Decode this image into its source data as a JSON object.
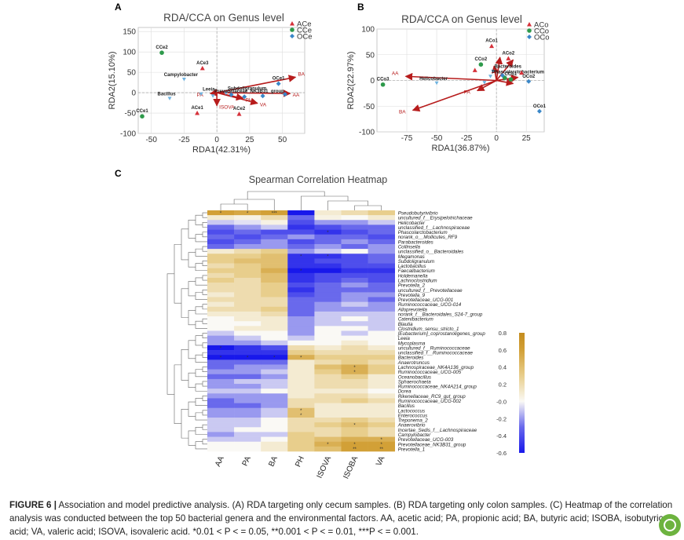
{
  "caption": {
    "label": "FIGURE 6 |",
    "text": "Association and model predictive analysis. (A) RDA targeting only cecum samples. (B) RDA targeting only colon samples. (C) Heatmap of the correlation analysis was conducted between the top 50 bacterial genera and the environmental factors. AA, acetic acid; PA, propionic acid; BA, butyric acid; ISOBA, isobutyric acid; VA, valeric acid; ISOVA, isovaleric acid. *0.01 < P < = 0.05, **0.001 < P < = 0.01, ***P < = 0.001."
  },
  "colors": {
    "AC": "#d6313a",
    "CC": "#2e9a4b",
    "OC": "#3a87c8",
    "arrow": "#b71c1c",
    "grid": "#dddddd"
  },
  "chart_data": [
    {
      "panel": "A",
      "type": "scatter",
      "title": "RDA/CCA on Genus level",
      "xlabel": "RDA1(42.31%)",
      "ylabel": "RDA2(15.10%)",
      "xlim": [
        -60,
        67
      ],
      "ylim": [
        -100,
        160
      ],
      "xticks": [
        -50,
        -25,
        0,
        25,
        50
      ],
      "yticks": [
        -100,
        -50,
        0,
        50,
        100,
        150
      ],
      "legend": {
        "position": "top-right",
        "entries": [
          "ACe",
          "CCe",
          "OCe"
        ]
      },
      "points": [
        {
          "label": "CCe2",
          "group": "CC",
          "x": -42,
          "y": 98
        },
        {
          "label": "CCe1",
          "group": "CC",
          "x": -57,
          "y": -58
        },
        {
          "label": "ACe3",
          "group": "AC",
          "x": -11,
          "y": 60
        },
        {
          "label": "ACe1",
          "group": "AC",
          "x": -15,
          "y": -50
        },
        {
          "label": "ACe2",
          "group": "AC",
          "x": 17,
          "y": -52
        },
        {
          "label": "OCe1",
          "group": "OC",
          "x": 47,
          "y": 22
        },
        {
          "label": "",
          "group": "OC",
          "x": 11,
          "y": -5
        },
        {
          "label": "",
          "group": "OC",
          "x": 21,
          "y": -10
        },
        {
          "label": "",
          "group": "OC",
          "x": 35,
          "y": -8
        },
        {
          "label": "",
          "group": "OC",
          "x": 52,
          "y": -4
        }
      ],
      "species": [
        {
          "label": "Campylobacter",
          "x": -25,
          "y": 33
        },
        {
          "label": "Bacillus",
          "x": -36,
          "y": -14
        },
        {
          "label": "Leeia",
          "x": -12,
          "y": -3
        },
        {
          "label": "Subdoligranulum",
          "x": 7,
          "y": -1
        },
        {
          "label": "Prevotellaceae_NK3B31_group",
          "x": -3,
          "y": -8
        }
      ],
      "vectors": [
        {
          "label": "BA",
          "x": 60,
          "y": 38
        },
        {
          "label": "AA",
          "x": 56,
          "y": -2
        },
        {
          "label": "VA",
          "x": 31,
          "y": -26
        },
        {
          "label": "ISOVA",
          "x": 0,
          "y": -32
        },
        {
          "label": "PA",
          "x": -5,
          "y": -2
        },
        {
          "label": "PH",
          "x": 20,
          "y": -14
        }
      ]
    },
    {
      "panel": "B",
      "type": "scatter",
      "title": "RDA/CCA on Genus level",
      "xlabel": "RDA1(36.87%)",
      "ylabel": "RDA2(22.97%)",
      "xlim": [
        -100,
        40
      ],
      "ylim": [
        -100,
        100
      ],
      "xticks": [
        -75,
        -50,
        -25,
        0,
        25
      ],
      "yticks": [
        -100,
        -50,
        0,
        50,
        100
      ],
      "legend": {
        "position": "top-right",
        "entries": [
          "ACo",
          "CCo",
          "OCo"
        ]
      },
      "points": [
        {
          "label": "ACo1",
          "group": "AC",
          "x": -4,
          "y": 67
        },
        {
          "label": "ACo2",
          "group": "AC",
          "x": 10,
          "y": 43
        },
        {
          "label": "",
          "group": "AC",
          "x": 21,
          "y": 15
        },
        {
          "label": "",
          "group": "AC",
          "x": -18,
          "y": 20
        },
        {
          "label": "CCo3",
          "group": "CC",
          "x": -95,
          "y": -8
        },
        {
          "label": "CCo2",
          "group": "CC",
          "x": -13,
          "y": 31
        },
        {
          "label": "CCo1",
          "group": "CC",
          "x": 12,
          "y": 2
        },
        {
          "label": "",
          "group": "CC",
          "x": 7,
          "y": 5
        },
        {
          "label": "OCo2",
          "group": "OC",
          "x": 27,
          "y": -2
        },
        {
          "label": "OCo1",
          "group": "OC",
          "x": 36,
          "y": -60
        },
        {
          "label": "",
          "group": "OC",
          "x": 5,
          "y": 10
        }
      ],
      "species": [
        {
          "label": "Bacteroides",
          "x": -3,
          "y": 18
        },
        {
          "label": "Phascolarctobacterium",
          "x": -5,
          "y": 8
        },
        {
          "label": "Helicobacter",
          "x": -50,
          "y": -5
        },
        {
          "label": "",
          "x": -10,
          "y": -4
        }
      ],
      "vectors": [
        {
          "label": "AA",
          "x": -76,
          "y": 8
        },
        {
          "label": "BA",
          "x": -70,
          "y": -58
        },
        {
          "label": "PA",
          "x": -16,
          "y": -20
        },
        {
          "label": "",
          "x": 3,
          "y": 45
        },
        {
          "label": "",
          "x": 14,
          "y": 40
        },
        {
          "label": "",
          "x": -2,
          "y": 28
        },
        {
          "label": "",
          "x": 18,
          "y": 6
        },
        {
          "label": "",
          "x": 14,
          "y": -6
        }
      ]
    },
    {
      "panel": "C",
      "type": "heatmap",
      "title": "Spearman Correlation Heatmap",
      "columns": [
        "AA",
        "PA",
        "BA",
        "PH",
        "ISOVA",
        "ISOBA",
        "VA"
      ],
      "rows": [
        "Pseudobutyrivibrio",
        "uncultured_f__Erysipelotrichaceae",
        "Helicobacter",
        "unclassified_f__Lachnospiraceae",
        "Phascolarctobacterium",
        "norank_o__Mollicutes_RF9",
        "Parabacteroides",
        "Collinsella",
        "unclassified_o__Bacteroidales",
        "Megamonas",
        "Subdoligranulum",
        "Lactobacillus",
        "Faecalibacterium",
        "Holdemanella",
        "Lachnoclostridium",
        "Prevotella_2",
        "uncultured_f__Prevotellaceae",
        "Prevotella_9",
        "Prevotellaceae_UCG-001",
        "Ruminococcaceae_UCG-014",
        "Alloprevotella",
        "norank_f__Bacteroidales_S24-7_group",
        "Catenibacterium",
        "Blautia",
        "Clostridium_sensu_stricto_1",
        "[Eubacterium]_coprostanoligenes_group",
        "Leeia",
        "Mycoplasma",
        "uncultured_f__Ruminococcaceae",
        "unclassified_f__Ruminococcaceae",
        "Bacteroides",
        "Anaerotruncus",
        "Lachnospiraceae_NK4A136_group",
        "Ruminococcaceae_UCG-005",
        "Oceanobacillus",
        "Sphaerochaeta",
        "Ruminococcaceae_NK4A214_group",
        "Dorea",
        "Rikenellaceae_RC9_gut_group",
        "Ruminococcaceae_UCG-002",
        "Bacillus",
        "Lactococcus",
        "Enterococcus",
        "Treponema_2",
        "Anaerovibrio",
        "Incertae_Sedis_f__Lachnospiraceae",
        "Campylobacter",
        "Prevotellaceae_UCG-003",
        "Prevotellaceae_NK3B31_group",
        "Prevotella_1"
      ],
      "values": [
        [
          0.6,
          0.55,
          0.6,
          -0.75,
          0.1,
          0.2,
          0.3
        ],
        [
          0.1,
          0.05,
          0.2,
          -0.3,
          0.05,
          0.0,
          0.1
        ],
        [
          -0.1,
          -0.05,
          0.05,
          -0.4,
          -0.2,
          -0.2,
          -0.1
        ],
        [
          -0.3,
          -0.2,
          -0.1,
          -0.5,
          -0.4,
          -0.3,
          -0.3
        ],
        [
          -0.4,
          -0.3,
          -0.4,
          -0.4,
          -0.5,
          -0.4,
          -0.3
        ],
        [
          -0.3,
          -0.4,
          -0.3,
          -0.2,
          -0.3,
          -0.3,
          -0.4
        ],
        [
          -0.4,
          -0.3,
          -0.2,
          -0.4,
          -0.3,
          -0.2,
          -0.3
        ],
        [
          -0.3,
          -0.2,
          -0.2,
          -0.3,
          -0.2,
          -0.3,
          -0.2
        ],
        [
          0.1,
          0.2,
          0.3,
          -0.2,
          -0.1,
          0.0,
          -0.2
        ],
        [
          0.3,
          0.3,
          0.4,
          -0.5,
          -0.5,
          -0.4,
          -0.3
        ],
        [
          0.3,
          0.4,
          0.4,
          -0.5,
          -0.4,
          -0.4,
          -0.3
        ],
        [
          0.2,
          0.3,
          0.4,
          -0.5,
          -0.5,
          -0.4,
          -0.4
        ],
        [
          0.3,
          0.3,
          0.5,
          -0.6,
          -0.6,
          -0.5,
          -0.5
        ],
        [
          0.2,
          0.3,
          0.4,
          -0.5,
          -0.4,
          -0.4,
          -0.4
        ],
        [
          0.3,
          0.2,
          0.4,
          -0.5,
          -0.4,
          -0.3,
          -0.4
        ],
        [
          0.2,
          0.2,
          0.3,
          -0.4,
          -0.3,
          -0.2,
          -0.3
        ],
        [
          0.2,
          0.2,
          0.3,
          -0.5,
          -0.3,
          -0.3,
          -0.3
        ],
        [
          0.1,
          0.2,
          0.3,
          -0.4,
          -0.3,
          -0.2,
          -0.2
        ],
        [
          0.2,
          0.2,
          0.2,
          -0.3,
          -0.3,
          -0.2,
          -0.3
        ],
        [
          0.1,
          0.2,
          0.2,
          -0.3,
          -0.2,
          -0.1,
          -0.2
        ],
        [
          0.2,
          0.2,
          0.3,
          -0.3,
          -0.2,
          -0.2,
          -0.2
        ],
        [
          0.1,
          0.1,
          0.2,
          -0.3,
          -0.1,
          -0.1,
          -0.1
        ],
        [
          0.0,
          0.1,
          0.1,
          -0.2,
          -0.1,
          0.0,
          -0.1
        ],
        [
          0.0,
          0.0,
          0.1,
          -0.2,
          -0.1,
          -0.1,
          -0.1
        ],
        [
          0.0,
          0.1,
          0.1,
          -0.2,
          0.0,
          0.0,
          -0.1
        ],
        [
          -0.1,
          0.0,
          0.0,
          -0.2,
          0.0,
          -0.1,
          0.0
        ],
        [
          -0.2,
          -0.1,
          0.0,
          -0.1,
          0.0,
          0.0,
          0.0
        ],
        [
          -0.2,
          -0.2,
          -0.1,
          0.0,
          0.0,
          0.1,
          0.0
        ],
        [
          -0.6,
          -0.5,
          -0.4,
          0.2,
          0.1,
          0.2,
          0.1
        ],
        [
          -0.5,
          -0.5,
          -0.5,
          0.3,
          0.2,
          0.2,
          0.2
        ],
        [
          -0.6,
          -0.6,
          -0.6,
          0.5,
          0.3,
          0.3,
          0.3
        ],
        [
          -0.3,
          -0.3,
          -0.3,
          0.1,
          0.2,
          0.3,
          0.2
        ],
        [
          -0.3,
          -0.2,
          -0.2,
          0.1,
          0.4,
          0.5,
          0.3
        ],
        [
          -0.2,
          -0.2,
          -0.1,
          0.1,
          0.3,
          0.5,
          0.3
        ],
        [
          -0.3,
          -0.3,
          -0.2,
          0.1,
          0.2,
          0.3,
          0.1
        ],
        [
          -0.2,
          -0.1,
          -0.1,
          0.1,
          0.2,
          0.2,
          0.1
        ],
        [
          -0.2,
          -0.2,
          -0.1,
          0.1,
          0.2,
          0.2,
          0.1
        ],
        [
          -0.1,
          -0.1,
          0.0,
          0.1,
          0.1,
          0.1,
          0.0
        ],
        [
          -0.2,
          -0.2,
          -0.2,
          0.1,
          0.2,
          0.2,
          0.1
        ],
        [
          -0.3,
          -0.2,
          -0.2,
          0.2,
          0.2,
          0.3,
          0.2
        ],
        [
          -0.3,
          -0.3,
          -0.2,
          0.2,
          0.1,
          0.1,
          0.1
        ],
        [
          -0.2,
          -0.2,
          -0.1,
          0.4,
          0.1,
          0.1,
          0.1
        ],
        [
          -0.2,
          -0.2,
          -0.1,
          0.4,
          0.1,
          0.1,
          0.1
        ],
        [
          -0.1,
          -0.1,
          0.0,
          0.2,
          0.2,
          0.3,
          0.2
        ],
        [
          -0.1,
          -0.1,
          0.0,
          0.2,
          0.3,
          0.4,
          0.3
        ],
        [
          -0.1,
          0.0,
          0.0,
          0.2,
          0.2,
          0.3,
          0.2
        ],
        [
          -0.2,
          -0.1,
          -0.1,
          0.3,
          0.2,
          0.3,
          0.2
        ],
        [
          -0.1,
          -0.1,
          0.0,
          0.3,
          0.4,
          0.5,
          0.5
        ],
        [
          0.0,
          0.0,
          0.1,
          0.3,
          0.5,
          0.6,
          0.6
        ],
        [
          0.0,
          0.0,
          0.1,
          0.3,
          0.4,
          0.6,
          0.6
        ]
      ],
      "significance": [
        {
          "row": 0,
          "col": 0,
          "mark": "*"
        },
        {
          "row": 0,
          "col": 1,
          "mark": "*"
        },
        {
          "row": 0,
          "col": 2,
          "mark": "***"
        },
        {
          "row": 9,
          "col": 3,
          "mark": "*"
        },
        {
          "row": 9,
          "col": 4,
          "mark": "*"
        },
        {
          "row": 12,
          "col": 3,
          "mark": "*"
        },
        {
          "row": 4,
          "col": 4,
          "mark": "*"
        },
        {
          "row": 28,
          "col": 0,
          "mark": "*"
        },
        {
          "row": 30,
          "col": 0,
          "mark": "*"
        },
        {
          "row": 30,
          "col": 1,
          "mark": "*"
        },
        {
          "row": 30,
          "col": 2,
          "mark": "*"
        },
        {
          "row": 30,
          "col": 3,
          "mark": "*"
        },
        {
          "row": 32,
          "col": 5,
          "mark": "*"
        },
        {
          "row": 33,
          "col": 5,
          "mark": "*"
        },
        {
          "row": 41,
          "col": 3,
          "mark": "*"
        },
        {
          "row": 42,
          "col": 3,
          "mark": "*"
        },
        {
          "row": 44,
          "col": 5,
          "mark": "*"
        },
        {
          "row": 47,
          "col": 6,
          "mark": "*"
        },
        {
          "row": 48,
          "col": 4,
          "mark": "*"
        },
        {
          "row": 48,
          "col": 5,
          "mark": "*"
        },
        {
          "row": 48,
          "col": 6,
          "mark": "*"
        },
        {
          "row": 49,
          "col": 5,
          "mark": "**"
        },
        {
          "row": 49,
          "col": 6,
          "mark": "**"
        }
      ],
      "colorbar": {
        "min": -0.6,
        "max": 0.8,
        "ticks": [
          "0.8",
          "0.6",
          "0.4",
          "0.2",
          "-0.0",
          "-0.2",
          "-0.4",
          "-0.6"
        ]
      }
    }
  ]
}
